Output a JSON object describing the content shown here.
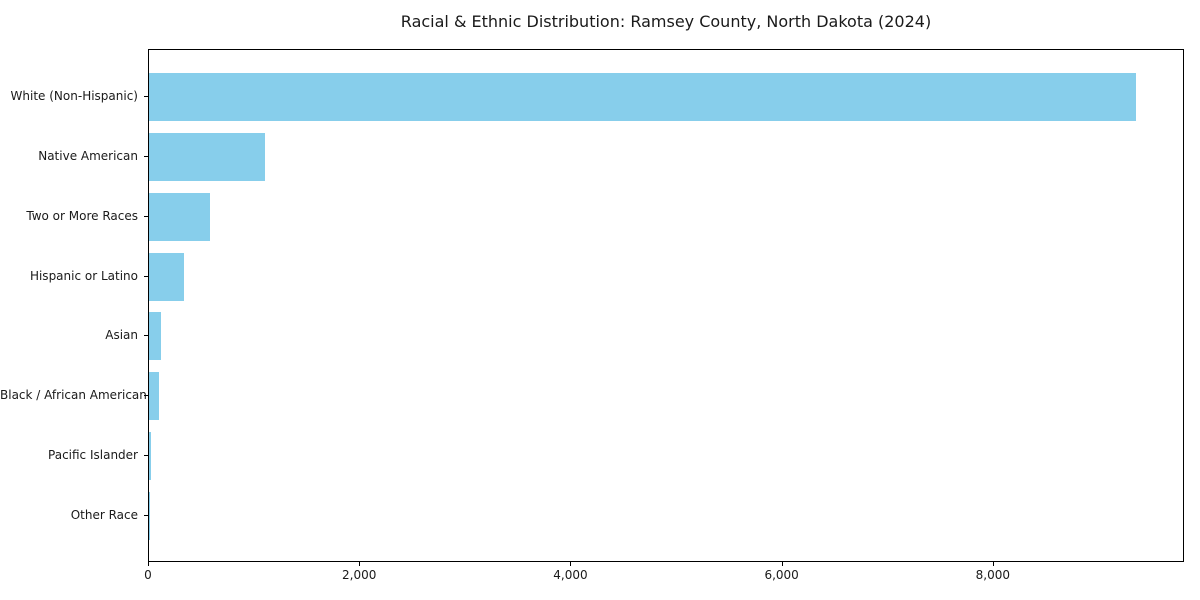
{
  "chart_data": {
    "type": "bar",
    "orientation": "horizontal",
    "title": "Racial & Ethnic Distribution: Ramsey County, North Dakota (2024)",
    "categories": [
      "White (Non-Hispanic)",
      "Native American",
      "Two or More Races",
      "Hispanic or Latino",
      "Asian",
      "Black / African American",
      "Pacific Islander",
      "Other Race"
    ],
    "values": [
      9360,
      1105,
      580,
      330,
      110,
      95,
      15,
      5
    ],
    "xlabel": "",
    "ylabel": "",
    "xlim": [
      0,
      9810
    ],
    "xticks": {
      "values": [
        0,
        2000,
        4000,
        6000,
        8000
      ],
      "labels": [
        "0",
        "2,000",
        "4,000",
        "6,000",
        "8,000"
      ]
    },
    "bar_color": "#87CEEB",
    "background_color": "#ffffff",
    "axis_color": "#000000",
    "grid": false,
    "legend": "none"
  }
}
